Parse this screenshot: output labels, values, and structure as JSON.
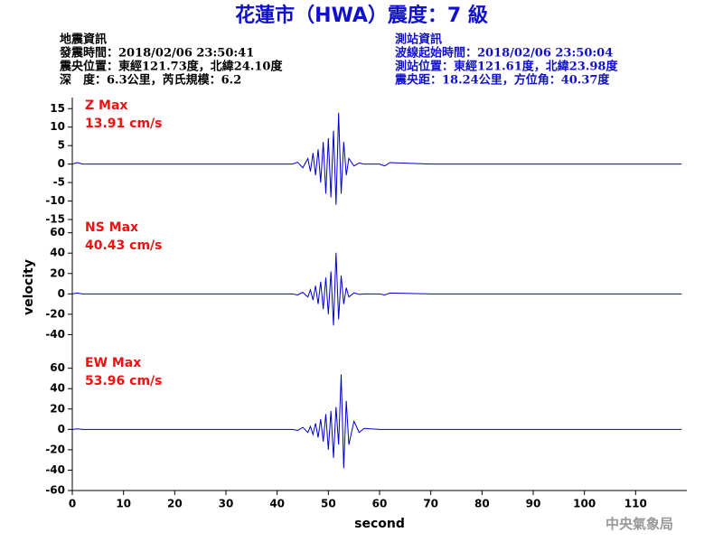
{
  "header": {
    "title": "花蓮市（HWA）震度：7 級",
    "left": [
      "地震資訊",
      "發震時間：2018/02/06 23:50:41",
      "震央位置：東經121.73度，北緯24.10度",
      "深　度：6.3公里，芮氏規模：6.2"
    ],
    "right": [
      "測站資訊",
      "波線起始時間：2018/02/06 23:50:04",
      "測站位置：東經121.61度，北緯23.98度",
      "震央距：18.24公里，方位角：40.37度"
    ],
    "watermark": "中央氣象局"
  },
  "chart_data": [
    {
      "type": "line",
      "annotations": [
        "Z Max",
        "13.91 cm/s"
      ],
      "color": "#0000cc",
      "x": [
        0,
        1,
        2,
        10,
        20,
        30,
        40,
        43,
        44,
        45,
        46,
        46.5,
        47,
        47.5,
        48,
        48.5,
        49,
        49.5,
        50,
        50.5,
        51,
        51.5,
        52,
        52.5,
        53,
        53.5,
        54,
        55,
        56,
        57,
        60,
        61,
        62,
        70,
        80,
        90,
        100,
        110,
        119
      ],
      "values": [
        0,
        0.4,
        0,
        0,
        0,
        0,
        0,
        0,
        0.5,
        -1,
        1.5,
        -2,
        3,
        -3,
        4,
        -5,
        6,
        -8,
        7,
        -9,
        9,
        -11,
        13.91,
        -8,
        6,
        -3,
        1.5,
        -0.5,
        0.3,
        0,
        0,
        -0.5,
        0.4,
        0,
        0,
        0,
        0,
        0,
        0
      ],
      "xlim": [
        0,
        120
      ],
      "ylim": [
        -15,
        18
      ],
      "yticks": [
        -15,
        -10,
        -5,
        0,
        5,
        10,
        15
      ]
    },
    {
      "type": "line",
      "annotations": [
        "NS Max",
        "40.43 cm/s"
      ],
      "color": "#0000cc",
      "ylabel": "velocity",
      "x": [
        0,
        1,
        2,
        10,
        20,
        30,
        40,
        43,
        44,
        45,
        46,
        46.5,
        47,
        47.5,
        48,
        48.5,
        49,
        49.5,
        50,
        50.5,
        51,
        51.5,
        52,
        52.5,
        53,
        53.5,
        54,
        55,
        56,
        57,
        60,
        61,
        62,
        70,
        80,
        90,
        100,
        110,
        119
      ],
      "values": [
        0,
        0.8,
        0,
        0,
        0,
        0,
        0,
        0,
        -1,
        1.5,
        -3,
        4,
        -6,
        8,
        -10,
        12,
        -15,
        16,
        -20,
        22,
        -31,
        40.43,
        -25,
        18,
        -10,
        6,
        -3,
        1,
        -0.5,
        0,
        0,
        -1,
        0.8,
        0,
        0,
        0,
        0,
        0,
        0
      ],
      "xlim": [
        0,
        120
      ],
      "ylim": [
        -60,
        73
      ],
      "yticks": [
        -40,
        -20,
        0,
        20,
        40,
        60
      ]
    },
    {
      "type": "line",
      "annotations": [
        "EW Max",
        "53.96 cm/s"
      ],
      "color": "#0000cc",
      "xlabel": "second",
      "x": [
        0,
        1,
        2,
        10,
        20,
        30,
        40,
        43,
        44,
        45,
        46,
        46.5,
        47,
        47.5,
        48,
        48.5,
        49,
        49.5,
        50,
        50.5,
        51,
        51.5,
        52,
        52.5,
        53,
        53.5,
        54,
        55,
        56,
        57,
        60,
        61,
        62,
        70,
        80,
        90,
        100,
        110,
        119
      ],
      "values": [
        0,
        0.5,
        0,
        0,
        0,
        0,
        0,
        0,
        -1,
        2,
        -3,
        3,
        -5,
        6,
        -8,
        10,
        -12,
        15,
        -20,
        18,
        -28,
        22,
        -15,
        53.96,
        -38,
        28,
        -15,
        8,
        -3,
        1,
        0,
        0,
        0,
        0,
        0,
        0,
        0,
        0,
        0
      ],
      "xlim": [
        0,
        120
      ],
      "ylim": [
        -60,
        73
      ],
      "yticks": [
        -60,
        -40,
        -20,
        0,
        20,
        40,
        60
      ],
      "xticks": [
        0,
        10,
        20,
        30,
        40,
        50,
        60,
        70,
        80,
        90,
        100,
        110
      ]
    }
  ]
}
